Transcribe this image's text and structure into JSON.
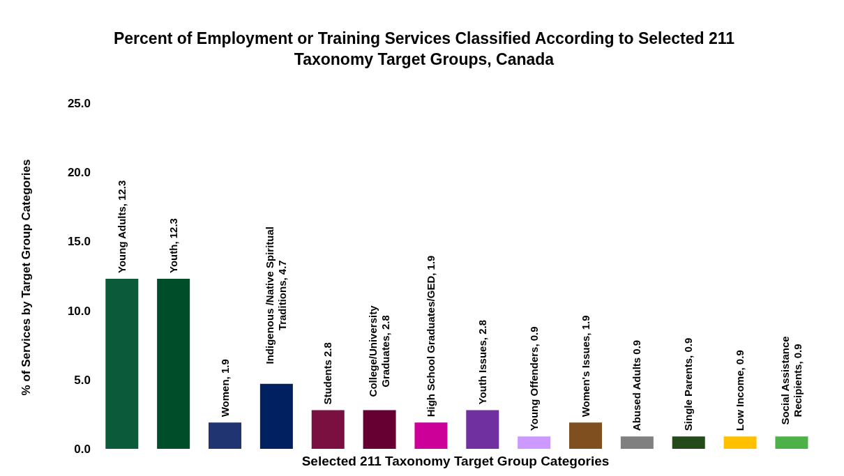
{
  "chart_data": {
    "type": "bar",
    "title": "Percent of Employment or Training Services Classified According to Selected 211 Taxonomy Target Groups, Canada",
    "xlabel": "Selected 211 Taxonomy  Target Group Categories",
    "ylabel": "% of Services  by Target Group Categories",
    "categories": [
      null,
      null,
      null,
      null,
      null,
      null,
      null,
      null,
      null,
      null,
      null,
      null,
      null,
      null
    ],
    "values": [
      12.3,
      12.3,
      1.9,
      4.7,
      2.8,
      2.8,
      1.9,
      2.8,
      0.9,
      1.9,
      0.9,
      0.9,
      0.9,
      0.9
    ],
    "colors": [
      "#0b5a3a",
      "#004d2a",
      "#1f3470",
      "#002060",
      "#7a1040",
      "#660033",
      "#cc0099",
      "#7030a0",
      "#cc99ff",
      "#7f4f1f",
      "#808080",
      "#254a1a",
      "#ffc000",
      "#4cb147"
    ],
    "value_labels": [
      "Young Adults, 12.3",
      "Youth, 12.3",
      "Women, 1.9",
      "Indigenous /Native Spiritual Traditions, 4.7",
      "Students 2.8",
      "College/University Graduates, 2.8",
      "High School Graduates/GED, 1.9",
      "Youth Issues, 2.8",
      "Young Offenders, 0.9",
      "Women's Issues, 1.9",
      "Abused Adults 0.9",
      "Single Parents, 0.9",
      "Low Income, 0.9",
      "Social Assistance Recipients, 0.9"
    ],
    "ylim": [
      0,
      25
    ],
    "yticks": [
      {
        "value": 0,
        "label": "0.0"
      },
      {
        "value": 5,
        "label": "5.0"
      },
      {
        "value": 10,
        "label": "10.0"
      },
      {
        "value": 15,
        "label": "15.0"
      },
      {
        "value": 20,
        "label": "20.0"
      },
      {
        "value": 25,
        "label": "25.0"
      }
    ],
    "grid": false,
    "legend": false
  }
}
